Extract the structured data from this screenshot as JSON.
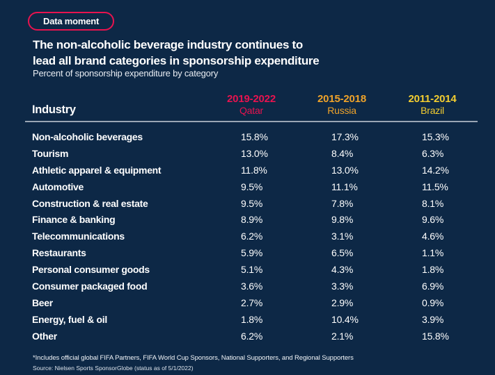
{
  "page": {
    "badge": "Data moment",
    "title_line1": "The non-alcoholic beverage industry continues to",
    "title_line2": "lead all brand categories in sponsorship expenditure",
    "subtitle": "Percent of sponsorship expenditure by category",
    "footnote": "*Includes official global FIFA Partners, FIFA World Cup Sponsors, National Supporters, and Regional Supporters",
    "source": "Source: Nielsen Sports SponsorGlobe (status as of 5/1/2022)"
  },
  "colors": {
    "background": "#0d2846",
    "accent_pink": "#e8134f",
    "accent_orange": "#efa32a",
    "accent_yellow": "#f3cd30",
    "divider": "#9aa6b4",
    "text": "#ffffff"
  },
  "table": {
    "industry_header": "Industry",
    "columns": [
      {
        "years": "2019-2022",
        "country": "Qatar",
        "color": "#e8134f"
      },
      {
        "years": "2015-2018",
        "country": "Russia",
        "color": "#efa32a"
      },
      {
        "years": "2011-2014",
        "country": "Brazil",
        "color": "#f3cd30"
      }
    ],
    "rows": [
      {
        "industry": "Non-alcoholic beverages",
        "values": [
          "15.8%",
          "17.3%",
          "15.3%"
        ]
      },
      {
        "industry": "Tourism",
        "values": [
          "13.0%",
          "8.4%",
          "6.3%"
        ]
      },
      {
        "industry": "Athletic apparel & equipment",
        "values": [
          "11.8%",
          "13.0%",
          "14.2%"
        ]
      },
      {
        "industry": "Automotive",
        "values": [
          "9.5%",
          "11.1%",
          "11.5%"
        ]
      },
      {
        "industry": "Construction & real estate",
        "values": [
          "9.5%",
          "7.8%",
          "8.1%"
        ]
      },
      {
        "industry": "Finance & banking",
        "values": [
          "8.9%",
          "9.8%",
          "9.6%"
        ]
      },
      {
        "industry": "Telecommunications",
        "values": [
          "6.2%",
          "3.1%",
          "4.6%"
        ]
      },
      {
        "industry": "Restaurants",
        "values": [
          "5.9%",
          "6.5%",
          "1.1%"
        ]
      },
      {
        "industry": "Personal consumer goods",
        "values": [
          "5.1%",
          "4.3%",
          "1.8%"
        ]
      },
      {
        "industry": "Consumer packaged food",
        "values": [
          "3.6%",
          "3.3%",
          "6.9%"
        ]
      },
      {
        "industry": "Beer",
        "values": [
          "2.7%",
          "2.9%",
          "0.9%"
        ]
      },
      {
        "industry": "Energy, fuel & oil",
        "values": [
          "1.8%",
          "10.4%",
          "3.9%"
        ]
      },
      {
        "industry": "Other",
        "values": [
          "6.2%",
          "2.1%",
          "15.8%"
        ]
      }
    ]
  },
  "chart_data": {
    "type": "table",
    "title": "The non-alcoholic beverage industry continues to lead all brand categories in sponsorship expenditure",
    "subtitle": "Percent of sponsorship expenditure by category",
    "unit": "%",
    "categories": [
      "Non-alcoholic beverages",
      "Tourism",
      "Athletic apparel & equipment",
      "Automotive",
      "Construction & real estate",
      "Finance & banking",
      "Telecommunications",
      "Restaurants",
      "Personal consumer goods",
      "Consumer packaged food",
      "Beer",
      "Energy, fuel & oil",
      "Other"
    ],
    "series": [
      {
        "name": "2019-2022 Qatar",
        "values": [
          15.8,
          13.0,
          11.8,
          9.5,
          9.5,
          8.9,
          6.2,
          5.9,
          5.1,
          3.6,
          2.7,
          1.8,
          6.2
        ]
      },
      {
        "name": "2015-2018 Russia",
        "values": [
          17.3,
          8.4,
          13.0,
          11.1,
          7.8,
          9.8,
          3.1,
          6.5,
          4.3,
          3.3,
          2.9,
          10.4,
          2.1
        ]
      },
      {
        "name": "2011-2014 Brazil",
        "values": [
          15.3,
          6.3,
          14.2,
          11.5,
          8.1,
          9.6,
          4.6,
          1.1,
          1.8,
          6.9,
          0.9,
          3.9,
          15.8
        ]
      }
    ]
  }
}
